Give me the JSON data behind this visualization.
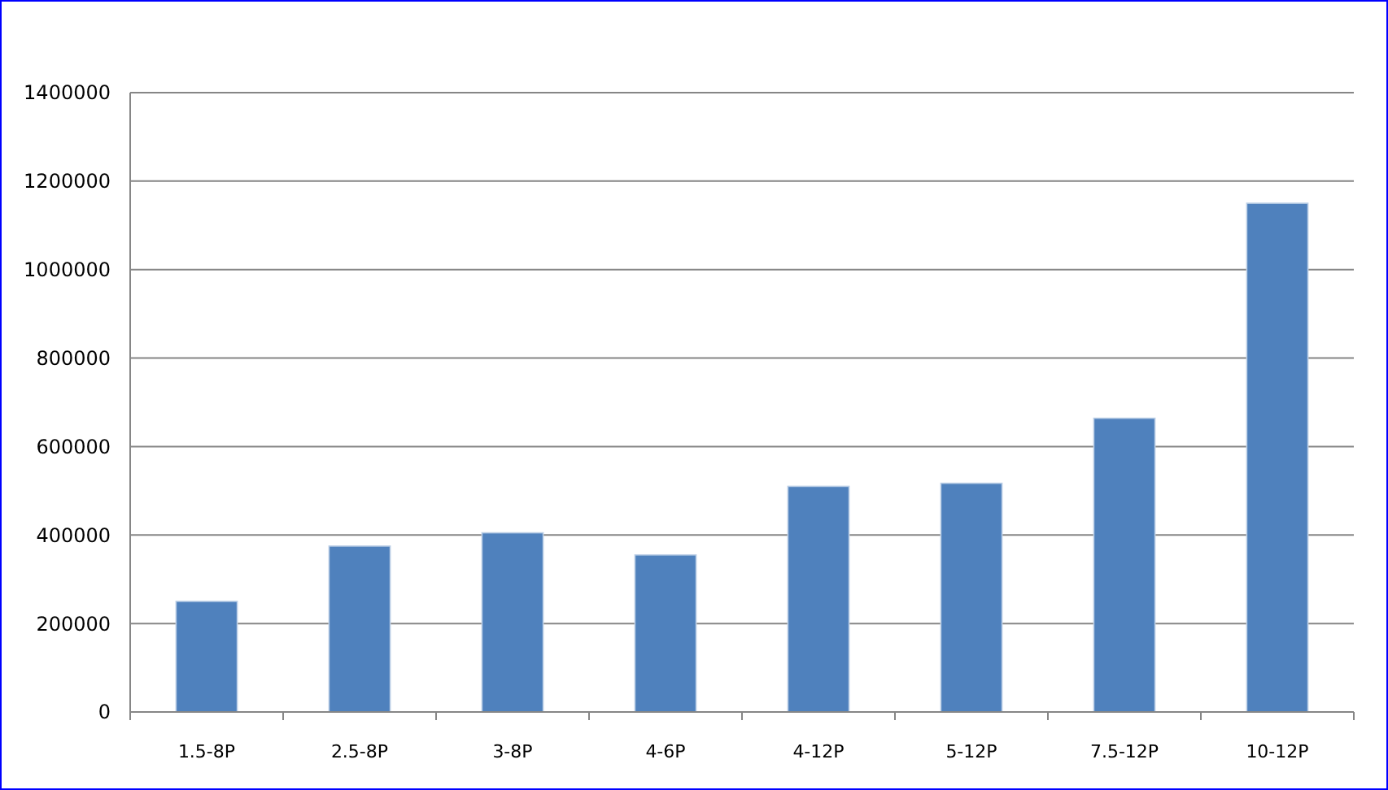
{
  "chart_data": {
    "type": "bar",
    "categories": [
      "1.5-8P",
      "2.5-8P",
      "3-8P",
      "4-6P",
      "4-12P",
      "5-12P",
      "7.5-12P",
      "10-12P"
    ],
    "values": [
      250000,
      375000,
      405000,
      355000,
      510000,
      517000,
      664000,
      1150000
    ],
    "color": "#4f81bd",
    "ylim": [
      0,
      1400000
    ],
    "yticks": [
      0,
      200000,
      400000,
      600000,
      800000,
      1000000,
      1200000,
      1400000
    ],
    "grid": "y"
  }
}
